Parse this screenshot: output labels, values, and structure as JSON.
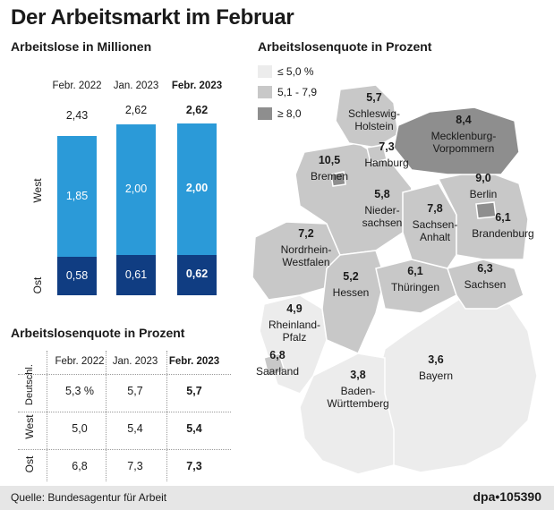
{
  "title": "Der Arbeitsmarkt im Februar",
  "left_subtitle": "Arbeitslose in Millionen",
  "map_subtitle": "Arbeitslosenquote in Prozent",
  "table_subtitle": "Arbeitslosenquote in Prozent",
  "colors": {
    "west": "#2b9ad8",
    "ost": "#103d82",
    "low": "#ececec",
    "mid": "#c8c8c8",
    "high": "#8e8e8e"
  },
  "chart_data": {
    "type": "bar",
    "stacked": true,
    "categories": [
      "Febr. 2022",
      "Jan. 2023",
      "Febr. 2023"
    ],
    "totals": [
      "2,43",
      "2,62",
      "2,62"
    ],
    "series": [
      {
        "name": "Ost",
        "values": [
          0.58,
          0.61,
          0.62
        ],
        "labels": [
          "0,58",
          "0,61",
          "0,62"
        ]
      },
      {
        "name": "West",
        "values": [
          1.85,
          2.0,
          2.0
        ],
        "labels": [
          "1,85",
          "2,00",
          "2,00"
        ]
      }
    ],
    "bold_category_index": 2
  },
  "table": {
    "headers": [
      "Febr. 2022",
      "Jan. 2023",
      "Febr. 2023"
    ],
    "rows": [
      {
        "label": "Deutschl.",
        "values": [
          "5,3 %",
          "5,7",
          "5,7"
        ]
      },
      {
        "label": "West",
        "values": [
          "5,0",
          "5,4",
          "5,4"
        ]
      },
      {
        "label": "Ost",
        "values": [
          "6,8",
          "7,3",
          "7,3"
        ]
      }
    ]
  },
  "legend": [
    {
      "label": "≤ 5,0 %",
      "key": "low"
    },
    {
      "label": "5,1 - 7,9",
      "key": "mid"
    },
    {
      "label": "≥ 8,0",
      "key": "high"
    }
  ],
  "states": [
    {
      "name": "Schleswig-Holstein",
      "lines": [
        "Schleswig-",
        "Holstein"
      ],
      "value": "5,7",
      "cls": "mid"
    },
    {
      "name": "Mecklenburg-Vorpommern",
      "lines": [
        "Mecklenburg-",
        "Vorpommern"
      ],
      "value": "8,4",
      "cls": "high"
    },
    {
      "name": "Hamburg",
      "lines": [
        "Hamburg"
      ],
      "value": "7,3",
      "cls": "mid"
    },
    {
      "name": "Bremen",
      "lines": [
        "Bremen"
      ],
      "value": "10,5",
      "cls": "high"
    },
    {
      "name": "Niedersachsen",
      "lines": [
        "Nieder-",
        "sachsen"
      ],
      "value": "5,8",
      "cls": "mid"
    },
    {
      "name": "Berlin",
      "lines": [
        "Berlin"
      ],
      "value": "9,0",
      "cls": "high"
    },
    {
      "name": "Brandenburg",
      "lines": [
        "Brandenburg"
      ],
      "value": "6,1",
      "cls": "mid"
    },
    {
      "name": "Sachsen-Anhalt",
      "lines": [
        "Sachsen-",
        "Anhalt"
      ],
      "value": "7,8",
      "cls": "mid"
    },
    {
      "name": "Nordrhein-Westfalen",
      "lines": [
        "Nordrhein-",
        "Westfalen"
      ],
      "value": "7,2",
      "cls": "mid"
    },
    {
      "name": "Hessen",
      "lines": [
        "Hessen"
      ],
      "value": "5,2",
      "cls": "mid"
    },
    {
      "name": "Thüringen",
      "lines": [
        "Thüringen"
      ],
      "value": "6,1",
      "cls": "mid"
    },
    {
      "name": "Sachsen",
      "lines": [
        "Sachsen"
      ],
      "value": "6,3",
      "cls": "mid"
    },
    {
      "name": "Rheinland-Pfalz",
      "lines": [
        "Rheinland-",
        "Pfalz"
      ],
      "value": "4,9",
      "cls": "low"
    },
    {
      "name": "Saarland",
      "lines": [
        "Saarland"
      ],
      "value": "6,8",
      "cls": "mid"
    },
    {
      "name": "Baden-Württemberg",
      "lines": [
        "Baden-",
        "Württemberg"
      ],
      "value": "3,8",
      "cls": "low"
    },
    {
      "name": "Bayern",
      "lines": [
        "Bayern"
      ],
      "value": "3,6",
      "cls": "low"
    }
  ],
  "source": "Quelle: Bundesagentur für Arbeit",
  "credit": "dpa•105390"
}
